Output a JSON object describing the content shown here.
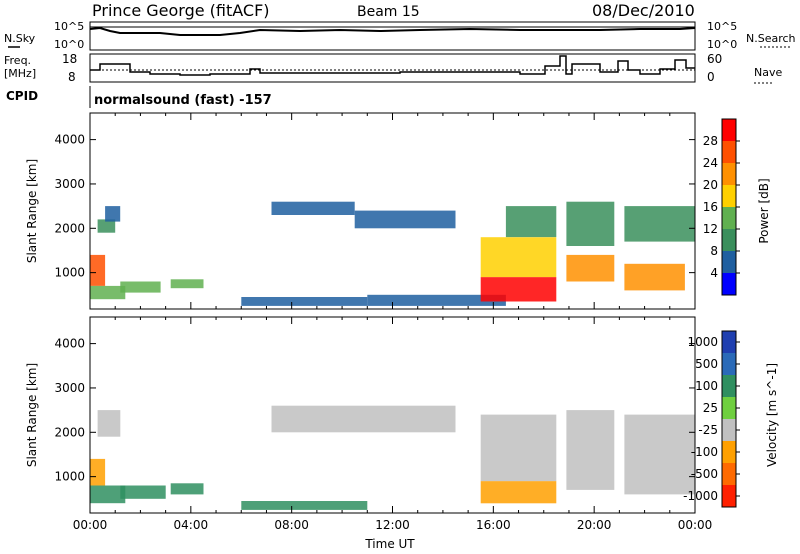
{
  "header": {
    "station": "Prince George (fitACF)",
    "beam": "Beam 15",
    "date": "08/Dec/2010"
  },
  "status_panel": {
    "nsky_label": "N.Sky",
    "nsky_ticks": [
      "10^5",
      "10^0"
    ],
    "nsearch_label": "N.Search",
    "nsearch_ticks": [
      "10^5",
      "10^0"
    ],
    "freq_label_1": "Freq.",
    "freq_label_2": "[MHz]",
    "freq_ticks": [
      "18",
      "8"
    ],
    "nave_label": "Nave",
    "nave_ticks": [
      "60",
      "0"
    ],
    "cpid_label": "CPID",
    "cpid_value": "normalsound (fast) -157"
  },
  "colors": {
    "power": [
      "#0000ff",
      "#1f5fa0",
      "#3a8f5c",
      "#60b050",
      "#ffd000",
      "#ff9000",
      "#ff5000",
      "#ff0000"
    ],
    "velocity": [
      "#1f3fb0",
      "#2a6ab8",
      "#2f8f60",
      "#6fcf3f",
      "#c8c8c8",
      "#ffa000",
      "#ff6a00",
      "#ff2000"
    ],
    "ground_scatter": "#c0c0c0"
  },
  "chart_data": [
    {
      "type": "heatmap",
      "title": "",
      "xlabel": "",
      "ylabel": "Slant Range [km]",
      "xlim": [
        "00:00",
        "24:00"
      ],
      "ylim": [
        180,
        4600
      ],
      "x_ticks": [
        "00:00",
        "04:00",
        "08:00",
        "12:00",
        "16:00",
        "20:00",
        "00:00"
      ],
      "y_ticks": [
        "1000",
        "2000",
        "3000",
        "4000"
      ],
      "colorbar": {
        "label": "Power [dB]",
        "ticks": [
          "4",
          "8",
          "12",
          "16",
          "20",
          "24",
          "28"
        ],
        "range": [
          0,
          32
        ]
      },
      "regions": [
        {
          "t0": 0.0,
          "t1": 0.6,
          "r0": 700,
          "r1": 1400,
          "value": 24
        },
        {
          "t0": 0.0,
          "t1": 1.4,
          "r0": 400,
          "r1": 700,
          "value": 12
        },
        {
          "t0": 0.3,
          "t1": 1.0,
          "r0": 1900,
          "r1": 2200,
          "value": 8
        },
        {
          "t0": 0.6,
          "t1": 1.2,
          "r0": 2150,
          "r1": 2500,
          "value": 6
        },
        {
          "t0": 1.2,
          "t1": 2.8,
          "r0": 550,
          "r1": 800,
          "value": 14
        },
        {
          "t0": 3.2,
          "t1": 4.5,
          "r0": 650,
          "r1": 850,
          "value": 12
        },
        {
          "t0": 6.0,
          "t1": 11.0,
          "r0": 250,
          "r1": 450,
          "value": 6
        },
        {
          "t0": 7.2,
          "t1": 10.5,
          "r0": 2300,
          "r1": 2600,
          "value": 6
        },
        {
          "t0": 10.5,
          "t1": 14.5,
          "r0": 2000,
          "r1": 2400,
          "value": 6
        },
        {
          "t0": 11.0,
          "t1": 16.5,
          "r0": 250,
          "r1": 500,
          "value": 6
        },
        {
          "t0": 15.5,
          "t1": 18.5,
          "r0": 350,
          "r1": 900,
          "value": 28
        },
        {
          "t0": 15.5,
          "t1": 18.5,
          "r0": 900,
          "r1": 1800,
          "value": 16
        },
        {
          "t0": 16.5,
          "t1": 18.5,
          "r0": 1800,
          "r1": 2500,
          "value": 10
        },
        {
          "t0": 18.9,
          "t1": 20.8,
          "r0": 800,
          "r1": 1400,
          "value": 20
        },
        {
          "t0": 18.9,
          "t1": 20.8,
          "r0": 1600,
          "r1": 2600,
          "value": 8
        },
        {
          "t0": 21.2,
          "t1": 23.6,
          "r0": 600,
          "r1": 1200,
          "value": 22
        },
        {
          "t0": 21.2,
          "t1": 24.0,
          "r0": 1700,
          "r1": 2500,
          "value": 8
        }
      ]
    },
    {
      "type": "heatmap",
      "title": "",
      "xlabel": "Time UT",
      "ylabel": "Slant Range [km]",
      "xlim": [
        "00:00",
        "24:00"
      ],
      "ylim": [
        180,
        4600
      ],
      "x_ticks": [
        "00:00",
        "04:00",
        "08:00",
        "12:00",
        "16:00",
        "20:00",
        "00:00"
      ],
      "y_ticks": [
        "1000",
        "2000",
        "3000",
        "4000"
      ],
      "colorbar": {
        "label": "Velocity [m s^-1]",
        "ticks": [
          "1000",
          "500",
          "100",
          "25",
          "-25",
          "-100",
          "-500",
          "-1000"
        ]
      },
      "regions": [
        {
          "t0": 0.0,
          "t1": 0.6,
          "r0": 800,
          "r1": 1400,
          "value": -100
        },
        {
          "t0": 0.0,
          "t1": 1.4,
          "r0": 400,
          "r1": 800,
          "value": 100
        },
        {
          "t0": 0.3,
          "t1": 1.2,
          "r0": 1900,
          "r1": 2500,
          "value": 0
        },
        {
          "t0": 1.2,
          "t1": 3.0,
          "r0": 500,
          "r1": 800,
          "value": 100
        },
        {
          "t0": 3.2,
          "t1": 4.5,
          "r0": 600,
          "r1": 850,
          "value": 100
        },
        {
          "t0": 6.0,
          "t1": 11.0,
          "r0": 250,
          "r1": 450,
          "value": 100
        },
        {
          "t0": 7.2,
          "t1": 14.5,
          "r0": 2000,
          "r1": 2600,
          "value": 0
        },
        {
          "t0": 15.5,
          "t1": 18.5,
          "r0": 400,
          "r1": 900,
          "value": -100
        },
        {
          "t0": 15.5,
          "t1": 18.5,
          "r0": 900,
          "r1": 2400,
          "value": 0
        },
        {
          "t0": 18.9,
          "t1": 20.8,
          "r0": 700,
          "r1": 2500,
          "value": 0
        },
        {
          "t0": 21.2,
          "t1": 24.0,
          "r0": 600,
          "r1": 2400,
          "value": 0
        }
      ]
    }
  ]
}
